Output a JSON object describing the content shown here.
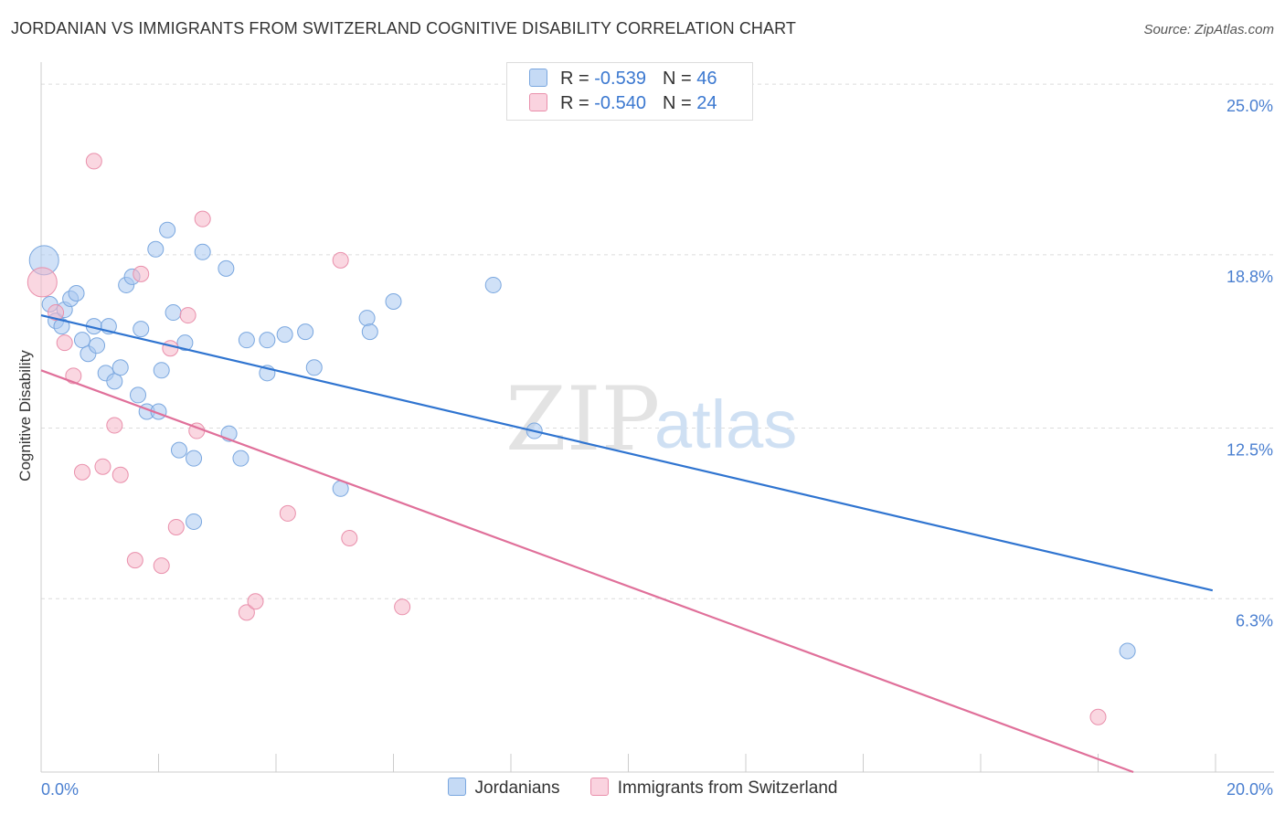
{
  "title": "JORDANIAN VS IMMIGRANTS FROM SWITZERLAND COGNITIVE DISABILITY CORRELATION CHART",
  "source": "Source: ZipAtlas.com",
  "watermark": {
    "zip": "ZIP",
    "atlas": "atlas"
  },
  "legend_top": [
    {
      "r_label": "R =",
      "r_value": "-0.539",
      "n_label": "N =",
      "n_value": "46",
      "color": "#a9c8f0"
    },
    {
      "r_label": "R =",
      "r_value": "-0.540",
      "n_label": "N =",
      "n_value": "24",
      "color": "#f6b7c9"
    }
  ],
  "legend_bottom": [
    {
      "label": "Jordanians",
      "color": "#a9c8f0"
    },
    {
      "label": "Immigrants from Switzerland",
      "color": "#f6b7c9"
    }
  ],
  "chart_data": {
    "type": "scatter",
    "title": "JORDANIAN VS IMMIGRANTS FROM SWITZERLAND COGNITIVE DISABILITY CORRELATION CHART",
    "xlabel": "",
    "ylabel": "Cognitive Disability",
    "xlim": [
      0,
      20
    ],
    "ylim": [
      0,
      25.8
    ],
    "x_tick_labels": [
      {
        "value": 0,
        "label": "0.0%"
      },
      {
        "value": 20,
        "label": "20.0%"
      }
    ],
    "y_ticks": [
      {
        "value": 25.0,
        "label": "25.0%"
      },
      {
        "value": 18.8,
        "label": "18.8%"
      },
      {
        "value": 12.5,
        "label": "12.5%"
      },
      {
        "value": 6.3,
        "label": "6.3%"
      }
    ],
    "grid": true,
    "legend_position": "top-center",
    "series": [
      {
        "name": "Jordanians",
        "color": "#a9c8f0",
        "stroke": "#7aa7df",
        "line_color": "#2f74d0",
        "trend": {
          "x": [
            0,
            19.95
          ],
          "y": [
            16.6,
            6.6
          ]
        },
        "points": [
          {
            "x": 0.05,
            "y": 18.6,
            "big": true
          },
          {
            "x": 0.15,
            "y": 17.0
          },
          {
            "x": 0.25,
            "y": 16.4
          },
          {
            "x": 0.35,
            "y": 16.2
          },
          {
            "x": 0.4,
            "y": 16.8
          },
          {
            "x": 0.5,
            "y": 17.2
          },
          {
            "x": 0.6,
            "y": 17.4
          },
          {
            "x": 0.7,
            "y": 15.7
          },
          {
            "x": 0.8,
            "y": 15.2
          },
          {
            "x": 0.9,
            "y": 16.2
          },
          {
            "x": 0.95,
            "y": 15.5
          },
          {
            "x": 1.1,
            "y": 14.5
          },
          {
            "x": 1.15,
            "y": 16.2
          },
          {
            "x": 1.25,
            "y": 14.2
          },
          {
            "x": 1.35,
            "y": 14.7
          },
          {
            "x": 1.45,
            "y": 17.7
          },
          {
            "x": 1.55,
            "y": 18.0
          },
          {
            "x": 1.65,
            "y": 13.7
          },
          {
            "x": 1.7,
            "y": 16.1
          },
          {
            "x": 1.8,
            "y": 13.1
          },
          {
            "x": 1.95,
            "y": 19.0
          },
          {
            "x": 2.0,
            "y": 13.1
          },
          {
            "x": 2.05,
            "y": 14.6
          },
          {
            "x": 2.15,
            "y": 19.7
          },
          {
            "x": 2.25,
            "y": 16.7
          },
          {
            "x": 2.35,
            "y": 11.7
          },
          {
            "x": 2.45,
            "y": 15.6
          },
          {
            "x": 2.6,
            "y": 11.4
          },
          {
            "x": 2.6,
            "y": 9.1
          },
          {
            "x": 2.75,
            "y": 18.9
          },
          {
            "x": 3.15,
            "y": 18.3
          },
          {
            "x": 3.2,
            "y": 12.3
          },
          {
            "x": 3.4,
            "y": 11.4
          },
          {
            "x": 3.5,
            "y": 15.7
          },
          {
            "x": 3.85,
            "y": 15.7
          },
          {
            "x": 3.85,
            "y": 14.5
          },
          {
            "x": 4.15,
            "y": 15.9
          },
          {
            "x": 4.5,
            "y": 16.0
          },
          {
            "x": 4.65,
            "y": 14.7
          },
          {
            "x": 5.1,
            "y": 10.3
          },
          {
            "x": 5.55,
            "y": 16.5
          },
          {
            "x": 5.6,
            "y": 16.0
          },
          {
            "x": 6.0,
            "y": 17.1
          },
          {
            "x": 7.7,
            "y": 17.7
          },
          {
            "x": 8.4,
            "y": 12.4
          },
          {
            "x": 18.5,
            "y": 4.4
          }
        ]
      },
      {
        "name": "Immigrants from Switzerland",
        "color": "#f6b7c9",
        "stroke": "#e98fab",
        "line_color": "#e0709a",
        "trend": {
          "x": [
            0,
            18.6
          ],
          "y": [
            14.6,
            0
          ]
        },
        "points": [
          {
            "x": 0.02,
            "y": 17.8,
            "big": true
          },
          {
            "x": 0.25,
            "y": 16.7
          },
          {
            "x": 0.4,
            "y": 15.6
          },
          {
            "x": 0.55,
            "y": 14.4
          },
          {
            "x": 0.7,
            "y": 10.9
          },
          {
            "x": 0.9,
            "y": 22.2
          },
          {
            "x": 1.05,
            "y": 11.1
          },
          {
            "x": 1.25,
            "y": 12.6
          },
          {
            "x": 1.35,
            "y": 10.8
          },
          {
            "x": 1.6,
            "y": 7.7
          },
          {
            "x": 1.7,
            "y": 18.1
          },
          {
            "x": 2.05,
            "y": 7.5
          },
          {
            "x": 2.2,
            "y": 15.4
          },
          {
            "x": 2.3,
            "y": 8.9
          },
          {
            "x": 2.5,
            "y": 16.6
          },
          {
            "x": 2.65,
            "y": 12.4
          },
          {
            "x": 2.75,
            "y": 20.1
          },
          {
            "x": 3.5,
            "y": 5.8
          },
          {
            "x": 3.65,
            "y": 6.2
          },
          {
            "x": 4.2,
            "y": 9.4
          },
          {
            "x": 5.1,
            "y": 18.6
          },
          {
            "x": 5.25,
            "y": 8.5
          },
          {
            "x": 6.15,
            "y": 6.0
          },
          {
            "x": 18.0,
            "y": 2.0
          }
        ]
      }
    ]
  }
}
